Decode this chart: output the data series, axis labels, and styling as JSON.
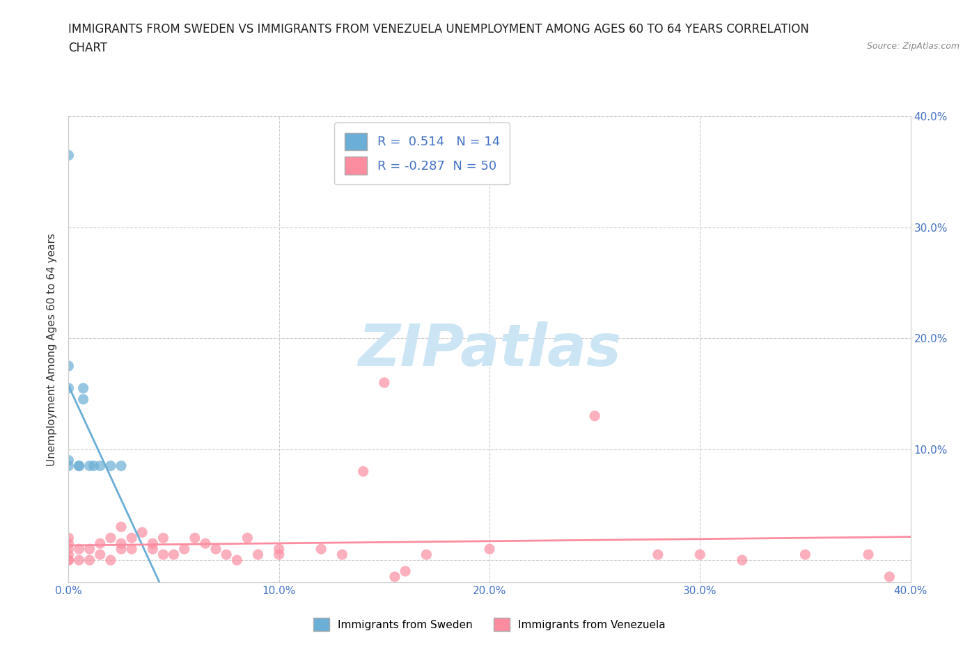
{
  "title_line1": "IMMIGRANTS FROM SWEDEN VS IMMIGRANTS FROM VENEZUELA UNEMPLOYMENT AMONG AGES 60 TO 64 YEARS CORRELATION",
  "title_line2": "CHART",
  "source": "Source: ZipAtlas.com",
  "ylabel": "Unemployment Among Ages 60 to 64 years",
  "xlim": [
    0.0,
    0.4
  ],
  "ylim": [
    -0.02,
    0.4
  ],
  "xticks": [
    0.0,
    0.1,
    0.2,
    0.3,
    0.4
  ],
  "yticks": [
    0.0,
    0.1,
    0.2,
    0.3,
    0.4
  ],
  "xticklabels": [
    "0.0%",
    "10.0%",
    "20.0%",
    "30.0%",
    "40.0%"
  ],
  "left_yticklabels": [
    "",
    "",
    "",
    "",
    ""
  ],
  "right_yticklabels": [
    "10.0%",
    "20.0%",
    "30.0%",
    "40.0%"
  ],
  "right_yticks": [
    0.1,
    0.2,
    0.3,
    0.4
  ],
  "sweden_color": "#6baed6",
  "venezuela_color": "#fc8da0",
  "sweden_R": 0.514,
  "sweden_N": 14,
  "venezuela_R": -0.287,
  "venezuela_N": 50,
  "sweden_scatter_x": [
    0.0,
    0.0,
    0.0,
    0.0,
    0.0,
    0.005,
    0.005,
    0.007,
    0.007,
    0.01,
    0.012,
    0.015,
    0.02,
    0.025
  ],
  "sweden_scatter_y": [
    0.365,
    0.175,
    0.155,
    0.09,
    0.085,
    0.085,
    0.085,
    0.155,
    0.145,
    0.085,
    0.085,
    0.085,
    0.085,
    0.085
  ],
  "venezuela_scatter_x": [
    0.0,
    0.0,
    0.0,
    0.0,
    0.0,
    0.0,
    0.005,
    0.005,
    0.01,
    0.01,
    0.015,
    0.015,
    0.02,
    0.02,
    0.025,
    0.025,
    0.025,
    0.03,
    0.03,
    0.035,
    0.04,
    0.04,
    0.045,
    0.045,
    0.05,
    0.055,
    0.06,
    0.065,
    0.07,
    0.075,
    0.08,
    0.085,
    0.09,
    0.1,
    0.1,
    0.12,
    0.13,
    0.14,
    0.155,
    0.17,
    0.2,
    0.25,
    0.28,
    0.3,
    0.32,
    0.35,
    0.38,
    0.39,
    0.15,
    0.16
  ],
  "venezuela_scatter_y": [
    0.0,
    0.0,
    0.005,
    0.01,
    0.015,
    0.02,
    0.0,
    0.01,
    0.0,
    0.01,
    0.005,
    0.015,
    0.0,
    0.02,
    0.01,
    0.015,
    0.03,
    0.01,
    0.02,
    0.025,
    0.01,
    0.015,
    0.005,
    0.02,
    0.005,
    0.01,
    0.02,
    0.015,
    0.01,
    0.005,
    0.0,
    0.02,
    0.005,
    0.005,
    0.01,
    0.01,
    0.005,
    0.08,
    -0.015,
    0.005,
    0.01,
    0.13,
    0.005,
    0.005,
    0.0,
    0.005,
    0.005,
    -0.015,
    0.16,
    -0.01
  ],
  "background_color": "#ffffff",
  "watermark_text": "ZIPatlas",
  "watermark_color": "#cce5f5",
  "grid_color": "#cccccc",
  "grid_style": "--",
  "title_fontsize": 12,
  "axis_label_fontsize": 11,
  "tick_fontsize": 11,
  "tick_color": "#4472c4"
}
